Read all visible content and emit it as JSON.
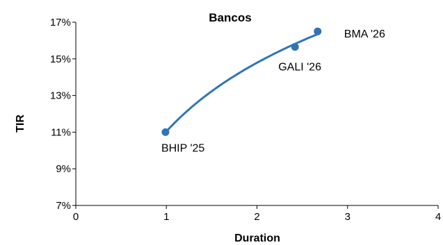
{
  "chart_data": {
    "type": "scatter",
    "title": "Bancos",
    "xlabel": "Duration",
    "ylabel": "TIR",
    "xlim": [
      0,
      4
    ],
    "ylim": [
      7,
      17
    ],
    "x_ticks": [
      0,
      1,
      2,
      3,
      4
    ],
    "y_ticks": [
      7,
      9,
      11,
      13,
      15,
      17
    ],
    "x_tick_labels": [
      "0",
      "1",
      "2",
      "3",
      "4"
    ],
    "y_tick_labels": [
      "7%",
      "9%",
      "11%",
      "13%",
      "15%",
      "17%"
    ],
    "grid": false,
    "legend": "none",
    "trendline": "logarithmic",
    "series": [
      {
        "color": "#2e75b6",
        "points": [
          {
            "label": "BHIP '25",
            "x": 0.99,
            "y": 11.0
          },
          {
            "label": "GALI '26",
            "x": 2.42,
            "y": 15.65
          },
          {
            "label": "BMA '26",
            "x": 2.67,
            "y": 16.5
          }
        ]
      }
    ]
  }
}
